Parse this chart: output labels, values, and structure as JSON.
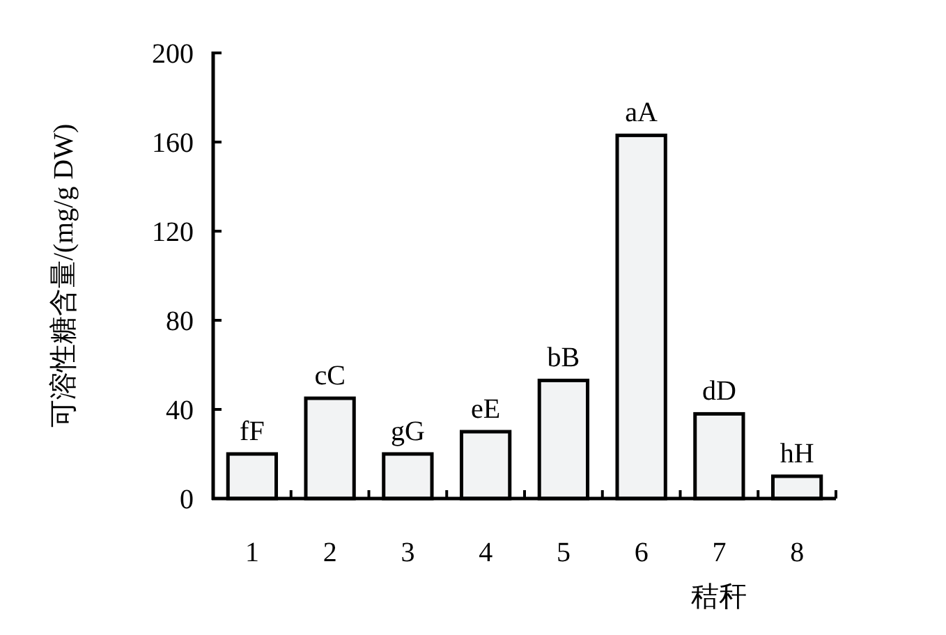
{
  "chart_data": {
    "type": "bar",
    "ylabel": "可溶性糖含量/(mg/g DW)",
    "xlabel": "秸秆",
    "categories": [
      "1",
      "2",
      "3",
      "4",
      "5",
      "6",
      "7",
      "8"
    ],
    "values": [
      20,
      45,
      20,
      30,
      53,
      163,
      38,
      10
    ],
    "color": "#f2f3f4",
    "value_labels": [
      "fF",
      "cC",
      "gG",
      "eE",
      "bB",
      "aA",
      "dD",
      "hH"
    ],
    "ylim": [
      0,
      200
    ],
    "yticks": [
      0,
      40,
      80,
      120,
      160,
      200
    ]
  }
}
